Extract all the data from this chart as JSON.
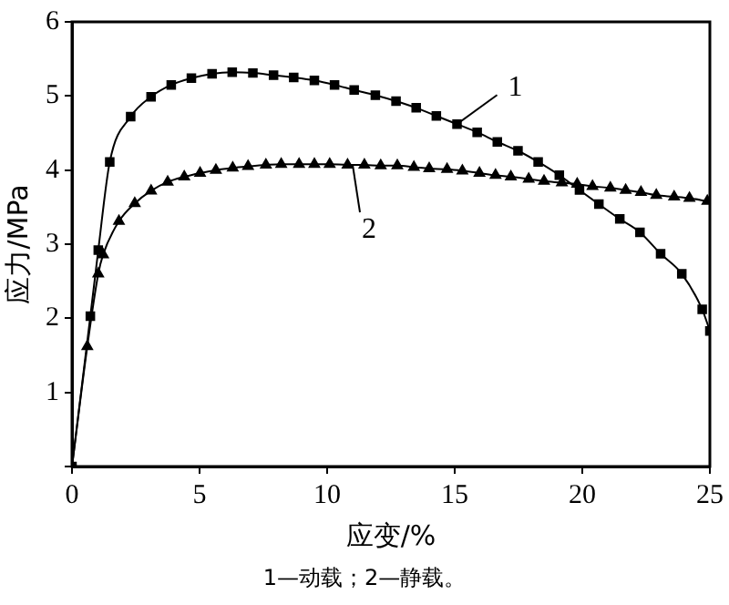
{
  "chart_data": {
    "type": "line",
    "xlabel": "应变/%",
    "ylabel": "应力/MPa",
    "xlim": [
      0,
      25
    ],
    "ylim": [
      0,
      6
    ],
    "xticks": [
      0,
      5,
      10,
      15,
      20,
      25
    ],
    "yticks": [
      {
        "value": 0,
        "label": null
      },
      1,
      2,
      3,
      4,
      5,
      6
    ],
    "grid": false,
    "legend": false,
    "line_style": "solid",
    "series": [
      {
        "color": "#000000",
        "marker": "square",
        "x": [
          0,
          0.72,
          1.03,
          1.48,
          2.3,
          3.1,
          3.89,
          4.68,
          5.49,
          6.28,
          7.09,
          7.9,
          8.69,
          9.5,
          10.29,
          11.06,
          11.89,
          12.7,
          13.49,
          14.28,
          15.09,
          15.88,
          16.67,
          17.48,
          18.27,
          19.1,
          19.89,
          20.65,
          21.47,
          22.26,
          23.07,
          23.9,
          24.7,
          25
        ],
        "values": [
          0,
          2.03,
          2.92,
          4.11,
          4.72,
          4.99,
          5.15,
          5.24,
          5.3,
          5.32,
          5.31,
          5.28,
          5.25,
          5.21,
          5.15,
          5.08,
          5.01,
          4.93,
          4.84,
          4.73,
          4.62,
          4.51,
          4.38,
          4.26,
          4.11,
          3.93,
          3.73,
          3.54,
          3.34,
          3.16,
          2.87,
          2.6,
          2.12,
          1.83
        ]
      },
      {
        "color": "#000000",
        "marker": "triangle",
        "x": [
          0,
          0.6,
          1.03,
          1.22,
          1.84,
          2.46,
          3.1,
          3.75,
          4.4,
          5.02,
          5.64,
          6.3,
          6.9,
          7.6,
          8.2,
          8.9,
          9.5,
          10.1,
          10.8,
          11.46,
          12.1,
          12.75,
          13.4,
          14.0,
          14.7,
          15.3,
          15.97,
          16.6,
          17.2,
          17.9,
          18.5,
          19.2,
          19.8,
          20.4,
          21.1,
          21.7,
          22.3,
          22.9,
          23.6,
          24.2,
          24.9
        ],
        "values": [
          0,
          1.62,
          2.6,
          2.86,
          3.31,
          3.55,
          3.72,
          3.84,
          3.91,
          3.96,
          4.0,
          4.03,
          4.05,
          4.07,
          4.08,
          4.08,
          4.08,
          4.08,
          4.07,
          4.07,
          4.06,
          4.06,
          4.04,
          4.02,
          4.01,
          3.99,
          3.96,
          3.93,
          3.91,
          3.88,
          3.85,
          3.83,
          3.81,
          3.78,
          3.76,
          3.73,
          3.7,
          3.66,
          3.64,
          3.62,
          3.58
        ]
      }
    ],
    "annotations": [
      {
        "text": "1",
        "x": 15.09,
        "y": 4.62
      },
      {
        "text": "2",
        "x": 11.0,
        "y": 4.07
      },
      "1—动载；2—静载。"
    ]
  }
}
